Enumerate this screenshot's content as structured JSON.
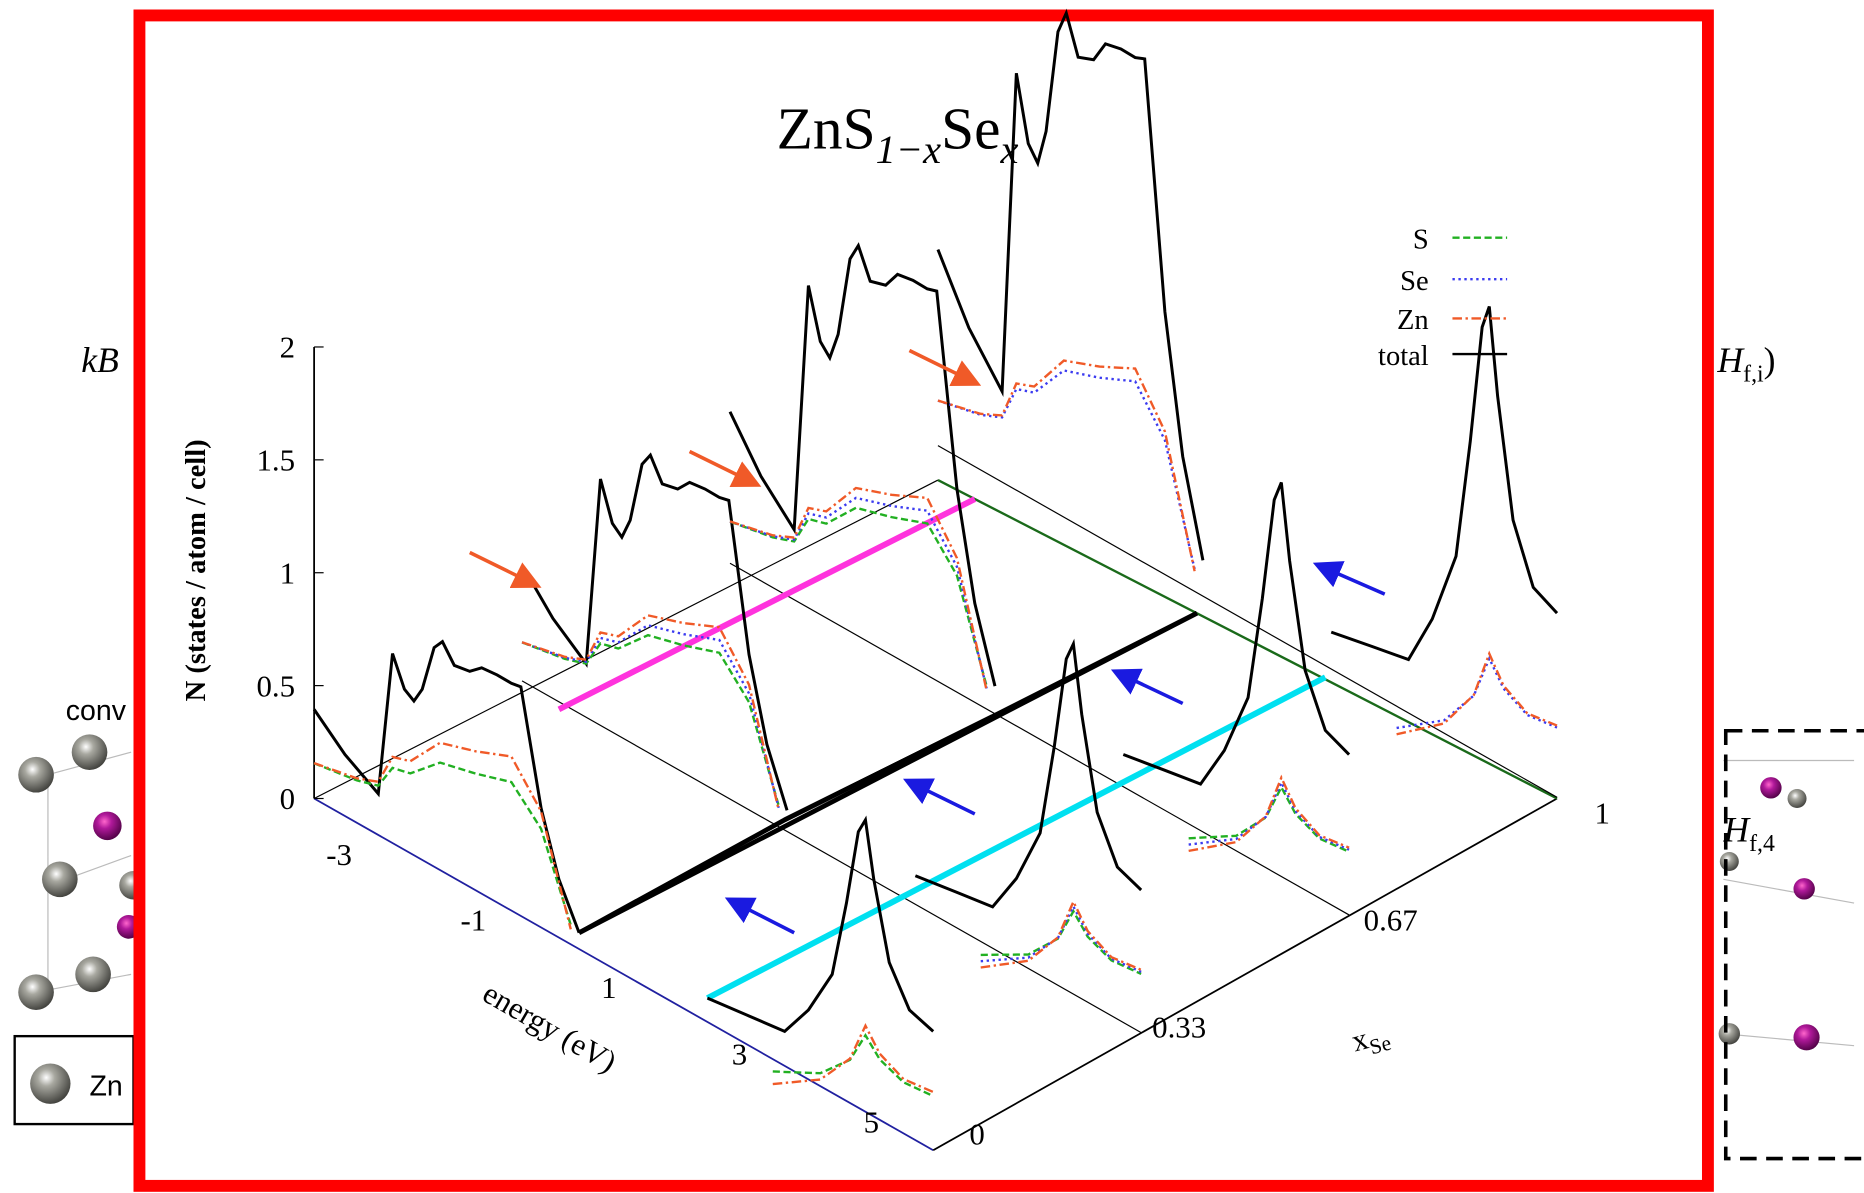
{
  "background": {
    "left_formula": "kB",
    "right_formula_sym": "H",
    "right_formula_sub": "f,i",
    "right_formula_close": ")",
    "conv_label": "conv",
    "legend_label": "Zn",
    "right_label_sym": "H",
    "right_label_sub": "f,4"
  },
  "figure": {
    "title": {
      "base": "ZnS",
      "sub1": "1−x",
      "mid": "Se",
      "sub2": "x"
    },
    "y_axis_label": "N (states / atom / cell)",
    "energy_axis_label": "energy (eV)",
    "x_axis_label": {
      "base": "x",
      "sub": "Se"
    },
    "yticks": [
      "0",
      "0.5",
      "1",
      "1.5",
      "2"
    ],
    "energy_ticks": [
      "-3",
      "-1",
      "1",
      "3",
      "5"
    ],
    "x_ticks": [
      "0",
      "0.33",
      "0.67",
      "1"
    ],
    "legend": [
      {
        "name": "S",
        "color": "#22b022"
      },
      {
        "name": "Se",
        "color": "#3b3bf0"
      },
      {
        "name": "Zn",
        "color": "#f05a28"
      },
      {
        "name": "total",
        "color": "#000000"
      }
    ]
  }
}
